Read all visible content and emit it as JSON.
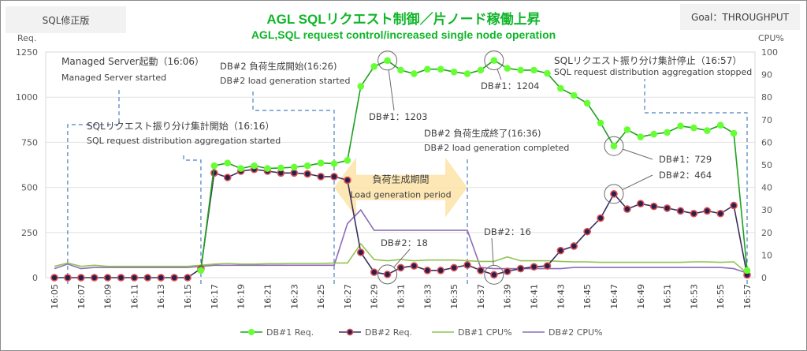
{
  "header": {
    "left_tag": "SQL修正版",
    "right_tag": "Goal：THROUGHPUT",
    "title_jp": "AGL SQLリクエスト制御／片ノード稼働上昇",
    "title_en": "AGL,SQL request control/increased single node operation"
  },
  "chart_data": {
    "type": "line",
    "title": "AGL SQLリクエスト制御／片ノード稼働上昇",
    "subtitle": "AGL,SQL request control/increased single node operation",
    "xlabel": "",
    "ylabel": "Req.",
    "y2label": "CPU%",
    "ylim": [
      0,
      1250
    ],
    "y2lim": [
      0,
      100
    ],
    "yticks": [
      0,
      250,
      500,
      750,
      1000,
      1250
    ],
    "y2ticks": [
      0,
      10,
      20,
      30,
      40,
      50,
      60,
      70,
      80,
      90,
      100
    ],
    "grid": true,
    "legend": "bottom",
    "x": [
      "16:05",
      "16:06",
      "16:07",
      "16:08",
      "16:09",
      "16:10",
      "16:11",
      "16:12",
      "16:13",
      "16:14",
      "16:15",
      "16:16",
      "16:17",
      "16:18",
      "16:19",
      "16:20",
      "16:21",
      "16:22",
      "16:23",
      "16:24",
      "16:25",
      "16:26",
      "16:27",
      "16:28",
      "16:29",
      "16:30",
      "16:31",
      "16:32",
      "16:33",
      "16:34",
      "16:35",
      "16:36",
      "16:37",
      "16:38",
      "16:39",
      "16:40",
      "16:41",
      "16:42",
      "16:43",
      "16:44",
      "16:45",
      "16:46",
      "16:47",
      "16:48",
      "16:49",
      "16:50",
      "16:51",
      "16:52",
      "16:53",
      "16:54",
      "16:55",
      "16:56",
      "16:57"
    ],
    "xtick_labels": [
      "16:05",
      "16:07",
      "16:09",
      "16:11",
      "16:13",
      "16:15",
      "16:17",
      "16:19",
      "16:21",
      "16:23",
      "16:25",
      "16:27",
      "16:29",
      "16:31",
      "16:33",
      "16:35",
      "16:37",
      "16:39",
      "16:41",
      "16:43",
      "16:45",
      "16:47",
      "16:49",
      "16:51",
      "16:53",
      "16:55",
      "16:57"
    ],
    "series": [
      {
        "name": "DB#1 Req.",
        "axis": "left",
        "color": "#1fa01f",
        "marker_color": "#66ff33",
        "values": [
          null,
          null,
          null,
          null,
          null,
          null,
          null,
          null,
          null,
          null,
          null,
          40,
          620,
          635,
          605,
          620,
          605,
          608,
          612,
          620,
          635,
          632,
          650,
          1060,
          1170,
          1203,
          1150,
          1130,
          1155,
          1155,
          1140,
          1130,
          1150,
          1204,
          1160,
          1150,
          1150,
          1132,
          1049,
          1010,
          966,
          857,
          729,
          820,
          780,
          795,
          805,
          840,
          830,
          815,
          845,
          800,
          40
        ]
      },
      {
        "name": "DB#2 Req.",
        "axis": "left",
        "color": "#3c2f5a",
        "marker_color": "#2a2050",
        "marker_edge": "#e05050",
        "values": [
          0,
          0,
          0,
          0,
          0,
          0,
          0,
          0,
          0,
          0,
          0,
          50,
          580,
          555,
          590,
          600,
          590,
          580,
          580,
          575,
          560,
          560,
          540,
          140,
          30,
          18,
          55,
          65,
          40,
          40,
          55,
          70,
          40,
          16,
          35,
          50,
          60,
          65,
          150,
          175,
          255,
          330,
          464,
          380,
          410,
          395,
          385,
          370,
          355,
          370,
          355,
          400,
          15
        ]
      },
      {
        "name": "DB#1 CPU%",
        "axis": "right",
        "color": "#92c353",
        "values": [
          5,
          6.5,
          5,
          5.5,
          5,
          5,
          5,
          5,
          5,
          5,
          5,
          5.5,
          6,
          6.3,
          6,
          6,
          6.2,
          6.2,
          6.3,
          6.3,
          6.3,
          6.5,
          6.5,
          15,
          8,
          7.5,
          8,
          7.5,
          7.8,
          7.8,
          7.8,
          7.5,
          7.2,
          7.2,
          9.2,
          7.5,
          7.5,
          7.5,
          7.2,
          7,
          7,
          6.8,
          6.8,
          6.8,
          6.8,
          6.8,
          6.8,
          6.8,
          7,
          7,
          6.8,
          7,
          2
        ]
      },
      {
        "name": "DB#2 CPU%",
        "axis": "right",
        "color": "#8e6bb8",
        "values": [
          4,
          6,
          4,
          4.5,
          4.5,
          4.5,
          4.5,
          4.5,
          4.5,
          4.5,
          4.5,
          5,
          5.5,
          5.5,
          5.5,
          5.5,
          5.5,
          5.5,
          5.5,
          5.5,
          5.5,
          5.5,
          24,
          30,
          21,
          21,
          21,
          21,
          21,
          21,
          21,
          21,
          4.5,
          4,
          4,
          4,
          4,
          4,
          4,
          4.5,
          4.5,
          4.5,
          4.5,
          4.5,
          4.5,
          4.5,
          4.5,
          4.5,
          4.5,
          4.5,
          4.5,
          4,
          2
        ]
      }
    ],
    "annotations": [
      {
        "id": "ms-start",
        "jp": "Managed Server起動（16:06）",
        "en": "Managed Server started",
        "at": "16:06"
      },
      {
        "id": "db2-load-start",
        "jp": "DB#2 負荷生成開始(16:26)",
        "en": "DB#2 load generation started",
        "at": "16:26"
      },
      {
        "id": "sql-dist-start",
        "jp": "SQLリクエスト振り分け集計開始（16:16）",
        "en": "SQL request distribution aggregation started",
        "at": "16:16"
      },
      {
        "id": "db2-load-end",
        "jp": "DB#2 負荷生成終了(16:36)",
        "en": "DB#2 load generation completed",
        "at": "16:36"
      },
      {
        "id": "sql-dist-stop",
        "jp": "SQLリクエスト振り分け集計停止（16:57）",
        "en": "SQL request distribution aggregation stopped",
        "at": "16:57"
      },
      {
        "id": "load-period",
        "jp": "負荷生成期間",
        "en": "Load generation period",
        "from": "16:26",
        "to": "16:36"
      }
    ],
    "callouts": [
      {
        "label": "DB#1：1203",
        "series": "DB#1 Req.",
        "at": "16:30",
        "value": 1203
      },
      {
        "label": "DB#1：1204",
        "series": "DB#1 Req.",
        "at": "16:38",
        "value": 1204
      },
      {
        "label": "DB#1：729",
        "series": "DB#1 Req.",
        "at": "16:47",
        "value": 729
      },
      {
        "label": "DB#2：464",
        "series": "DB#2 Req.",
        "at": "16:47",
        "value": 464
      },
      {
        "label": "DB#2：18",
        "series": "DB#2 Req.",
        "at": "16:30",
        "value": 18
      },
      {
        "label": "DB#2：16",
        "series": "DB#2 Req.",
        "at": "16:38",
        "value": 16
      }
    ]
  }
}
